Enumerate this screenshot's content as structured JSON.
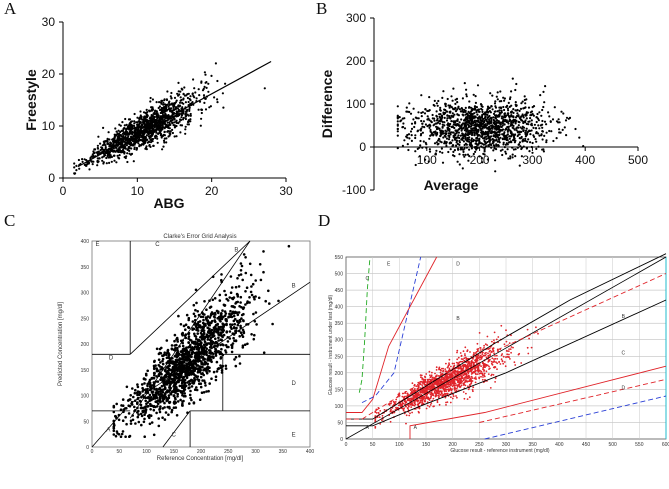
{
  "panel_labels": [
    "A",
    "B",
    "C",
    "D"
  ],
  "chart_data": [
    {
      "panel": "A",
      "type": "scatter",
      "xlabel": "ABG",
      "ylabel": "Freestyle",
      "xlim": [
        0,
        30
      ],
      "ylim": [
        0,
        30
      ],
      "xticks": [
        "0",
        "10",
        "20",
        "30"
      ],
      "yticks": [
        "0",
        "10",
        "20",
        "30"
      ],
      "n_points": 1400,
      "point_color": "#000000",
      "cloud": {
        "x_mean": 11,
        "x_sd": 3.5,
        "slope": 0.78,
        "intercept": 0.8,
        "noise_sd": 1.6
      },
      "regression_line": {
        "x": [
          2,
          28
        ],
        "y": [
          2.2,
          22.4
        ]
      }
    },
    {
      "panel": "B",
      "type": "scatter",
      "xlabel": "Average",
      "ylabel": "Difference",
      "xlim": [
        0,
        500
      ],
      "ylim": [
        -100,
        300
      ],
      "xticks": [
        "100",
        "200",
        "300",
        "400",
        "500"
      ],
      "yticks": [
        "-100",
        "0",
        "100",
        "200",
        "300"
      ],
      "n_points": 1400,
      "point_color": "#000000",
      "cloud": {
        "x_mean": 200,
        "x_sd": 65,
        "y_mean": 45,
        "y_sd": 32
      },
      "zero_line": 0
    },
    {
      "panel": "C",
      "type": "scatter",
      "title": "Clarke's Error Grid Analysis",
      "xlabel": "Reference Concentration [mg/dl]",
      "ylabel": "Predicted Concentration [mg/dl]",
      "xlim": [
        0,
        400
      ],
      "ylim": [
        0,
        400
      ],
      "xticks": [
        "0",
        "50",
        "100",
        "150",
        "200",
        "250",
        "300",
        "350",
        "400"
      ],
      "yticks": [
        "0",
        "50",
        "100",
        "150",
        "200",
        "250",
        "300",
        "350",
        "400"
      ],
      "zones": [
        "A",
        "B",
        "B",
        "C",
        "C",
        "D",
        "D",
        "E",
        "E"
      ],
      "n_points": 1500,
      "point_color": "#000000",
      "cloud": {
        "x_mean": 175,
        "x_sd": 55,
        "slope": 0.92,
        "intercept": 5,
        "noise_sd": 30
      },
      "zone_lines": [
        {
          "x": [
            0,
            58.3
          ],
          "y": [
            0,
            70
          ]
        },
        {
          "x": [
            70,
            290
          ],
          "y": [
            56,
            400
          ]
        },
        {
          "x": [
            70,
            70
          ],
          "y": [
            180,
            400
          ]
        },
        {
          "x": [
            70,
            290
          ],
          "y": [
            180,
            400
          ]
        },
        {
          "x": [
            130,
            180
          ],
          "y": [
            0,
            70
          ]
        },
        {
          "x": [
            180,
            180
          ],
          "y": [
            0,
            70
          ]
        },
        {
          "x": [
            180,
            400
          ],
          "y": [
            70,
            70
          ]
        },
        {
          "x": [
            240,
            240
          ],
          "y": [
            70,
            180
          ]
        },
        {
          "x": [
            240,
            400
          ],
          "y": [
            180,
            180
          ]
        },
        {
          "x": [
            0,
            70
          ],
          "y": [
            70,
            70
          ]
        },
        {
          "x": [
            0,
            70
          ],
          "y": [
            180,
            180
          ]
        },
        {
          "x": [
            70,
            400
          ],
          "y": [
            84,
            320
          ]
        }
      ]
    },
    {
      "panel": "D",
      "type": "scatter",
      "xlabel": "Glucose result - reference instrument (mg/dl)",
      "ylabel": "Glucose result - instrument under test (mg/dl)",
      "xlim": [
        0,
        600
      ],
      "ylim": [
        0,
        550
      ],
      "xticks": [
        "0",
        "50",
        "100",
        "150",
        "200",
        "250",
        "300",
        "350",
        "400",
        "450",
        "500",
        "550",
        "600"
      ],
      "yticks": [
        "0",
        "50",
        "100",
        "150",
        "200",
        "250",
        "300",
        "350",
        "400",
        "450",
        "500",
        "550"
      ],
      "zones": [
        "E",
        "D",
        "C",
        "B",
        "A",
        "A",
        "B",
        "C",
        "D"
      ],
      "n_points": 1600,
      "point_color": "#e0242a",
      "cloud": {
        "x_mean": 190,
        "x_sd": 55,
        "slope": 0.82,
        "intercept": 20,
        "noise_sd": 18
      },
      "identity_lines": [
        {
          "color": "#000000",
          "x": [
            0,
            600
          ],
          "y": [
            0,
            550
          ]
        }
      ],
      "boundary_lines": [
        {
          "color": "#000000",
          "dash": false,
          "x": [
            0,
            50,
            140,
            280,
            420,
            600
          ],
          "y": [
            60,
            60,
            150,
            290,
            420,
            560
          ]
        },
        {
          "color": "#000000",
          "dash": false,
          "x": [
            0,
            50,
            140,
            300,
            600
          ],
          "y": [
            40,
            40,
            100,
            200,
            420
          ]
        },
        {
          "color": "#e0242a",
          "dash": false,
          "x": [
            0,
            30,
            50,
            80,
            170
          ],
          "y": [
            80,
            80,
            120,
            280,
            550
          ]
        },
        {
          "color": "#e0242a",
          "dash": false,
          "x": [
            120,
            120,
            260,
            600
          ],
          "y": [
            0,
            40,
            80,
            220
          ]
        },
        {
          "color": "#e0242a",
          "dash": true,
          "x": [
            0,
            30,
            120,
            600
          ],
          "y": [
            60,
            60,
            150,
            500
          ]
        },
        {
          "color": "#e0242a",
          "dash": true,
          "x": [
            250,
            600
          ],
          "y": [
            50,
            180
          ]
        },
        {
          "color": "#2a3fd6",
          "dash": true,
          "x": [
            30,
            55,
            90,
            140
          ],
          "y": [
            110,
            130,
            200,
            550
          ]
        },
        {
          "color": "#2a3fd6",
          "dash": true,
          "x": [
            260,
            600
          ],
          "y": [
            0,
            130
          ]
        },
        {
          "color": "#22aa22",
          "dash": true,
          "x": [
            25,
            30,
            35,
            40,
            45
          ],
          "y": [
            140,
            180,
            300,
            450,
            550
          ]
        }
      ]
    }
  ]
}
